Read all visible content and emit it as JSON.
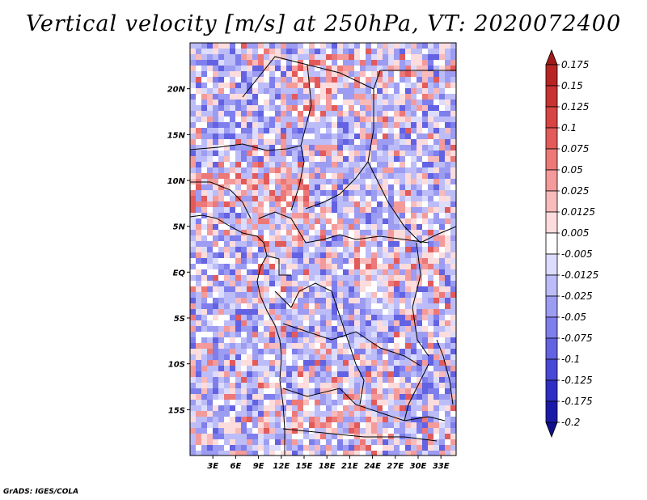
{
  "title": "Vertical velocity [m/s] at 250hPa, VT: 2020072400",
  "credit": "GrADS: IGES/COLA",
  "map": {
    "lon_range": [
      0,
      35
    ],
    "lat_range": [
      -20,
      25
    ],
    "lon_ticks": [
      "3E",
      "6E",
      "9E",
      "12E",
      "15E",
      "18E",
      "21E",
      "24E",
      "27E",
      "30E",
      "33E"
    ],
    "lat_ticks": [
      "20N",
      "15N",
      "10N",
      "5N",
      "EQ",
      "5S",
      "10S",
      "15S"
    ]
  },
  "colorbar": {
    "levels": [
      "0.175",
      "0.15",
      "0.125",
      "0.1",
      "0.075",
      "0.05",
      "0.025",
      "0.0125",
      "0.005",
      "-0.005",
      "-0.0125",
      "-0.025",
      "-0.05",
      "-0.075",
      "-0.1",
      "-0.125",
      "-0.175",
      "-0.2"
    ],
    "colors": [
      "#a01a1a",
      "#b82424",
      "#c83232",
      "#d84444",
      "#e25a5a",
      "#ec7878",
      "#f49a9a",
      "#f8baba",
      "#fcdcdc",
      "#ffffff",
      "#dcdcfc",
      "#bcbcf8",
      "#9c9cf2",
      "#7e7eec",
      "#6262e2",
      "#4848d6",
      "#2e2ec4",
      "#1a1aa8",
      "#10108a"
    ]
  }
}
